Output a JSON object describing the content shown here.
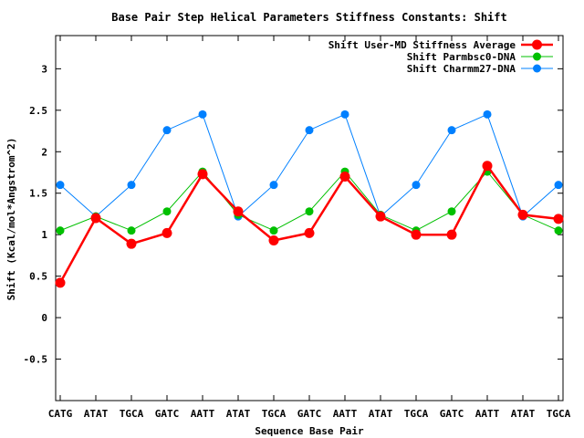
{
  "chart_data": {
    "type": "line",
    "title": "Base Pair Step Helical Parameters Stiffness Constants: Shift",
    "xlabel": "Sequence Base Pair",
    "ylabel": "Shift (Kcal/mol*Angstrom^2)",
    "categories": [
      "CATG",
      "ATAT",
      "TGCA",
      "GATC",
      "AATT",
      "ATAT",
      "TGCA",
      "GATC",
      "AATT",
      "ATAT",
      "TGCA",
      "GATC",
      "AATT",
      "ATAT",
      "TGCA"
    ],
    "ylim": [
      -1,
      3.4
    ],
    "yticks": [
      -0.5,
      0,
      0.5,
      1,
      1.5,
      2,
      2.5,
      3
    ],
    "ytick_labels": [
      "-0.5",
      "0",
      "0.5",
      "1",
      "1.5",
      "2",
      "2.5",
      "3"
    ],
    "grid": false,
    "legend_position": "top-right",
    "series": [
      {
        "name": "Shift User-MD Stiffness Average",
        "color": "#ff0000",
        "values": [
          0.42,
          1.2,
          0.89,
          1.02,
          1.73,
          1.28,
          0.93,
          1.02,
          1.7,
          1.22,
          1.0,
          1.0,
          1.83,
          1.24,
          1.19
        ]
      },
      {
        "name": "Shift Parmbsc0-DNA",
        "color": "#00c000",
        "values": [
          1.05,
          1.22,
          1.05,
          1.28,
          1.76,
          1.24,
          1.05,
          1.28,
          1.76,
          1.24,
          1.05,
          1.28,
          1.76,
          1.24,
          1.05
        ]
      },
      {
        "name": "Shift Charmm27-DNA",
        "color": "#0080ff",
        "values": [
          1.6,
          1.22,
          1.6,
          2.26,
          2.45,
          1.22,
          1.6,
          2.26,
          2.45,
          1.22,
          1.6,
          2.26,
          2.45,
          1.22,
          1.6
        ]
      }
    ]
  }
}
